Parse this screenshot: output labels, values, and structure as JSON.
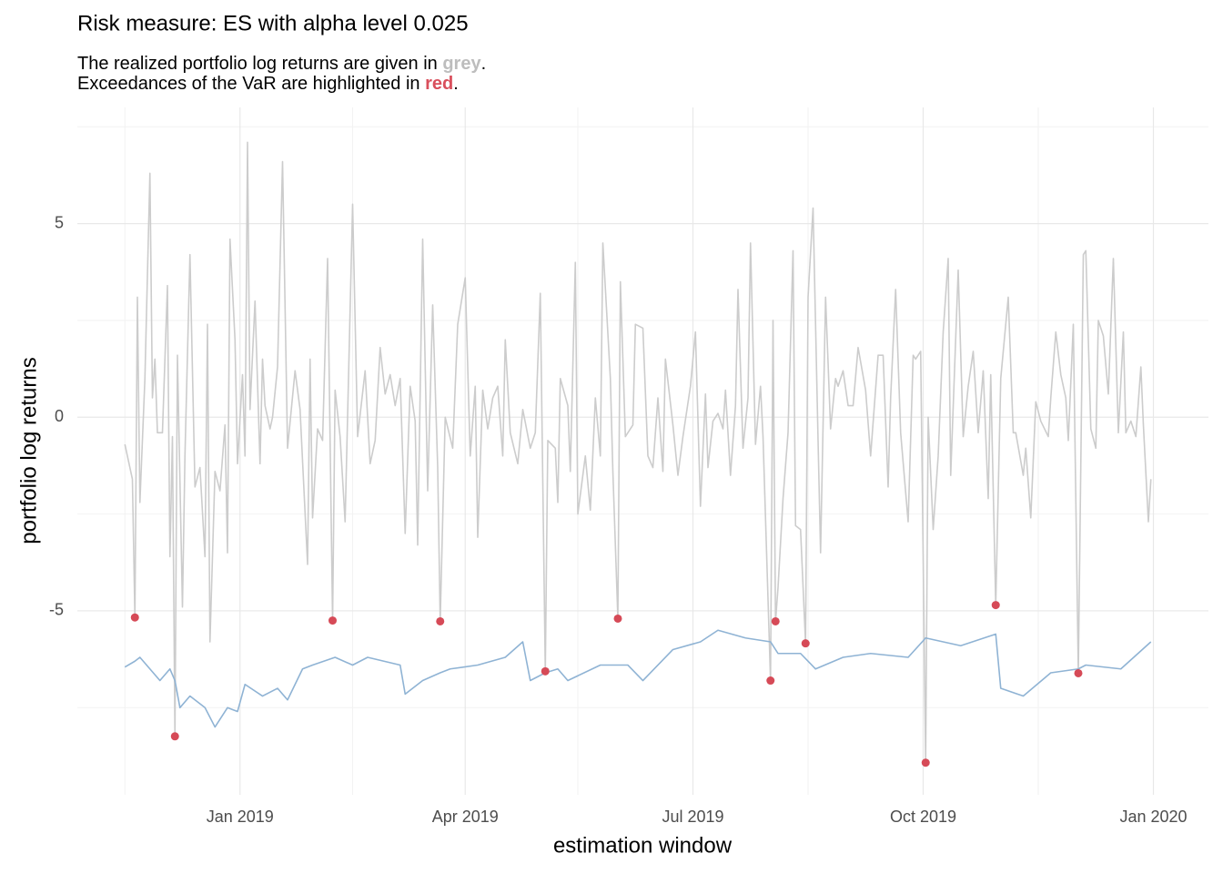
{
  "chart_data": {
    "type": "line",
    "title": "Risk measure: ES with alpha level 0.025",
    "subtitle": [
      [
        "The realized portfolio log returns are given in ",
        "grey",
        "."
      ],
      [
        "Exceedances of the VaR are highlighted in ",
        "red",
        "."
      ]
    ],
    "subtitle_highlight_colors": [
      "#bdbdbd",
      "#d94f5c"
    ],
    "x_label": "estimation window",
    "y_label": "portfolio log returns",
    "xlim": [
      "2018-10-28",
      "2020-01-23"
    ],
    "xticks": [
      {
        "value": "2019-01-01",
        "label": "Jan 2019"
      },
      {
        "value": "2019-04-01",
        "label": "Apr 2019"
      },
      {
        "value": "2019-07-01",
        "label": "Jul 2019"
      },
      {
        "value": "2019-10-01",
        "label": "Oct 2019"
      },
      {
        "value": "2020-01-01",
        "label": "Jan 2020"
      }
    ],
    "x_minor_ticks": [
      "2018-11-16",
      "2019-02-15",
      "2019-05-16",
      "2019-08-16",
      "2019-11-16"
    ],
    "ylim": [
      -9.75,
      8.0
    ],
    "yticks": [
      -5,
      0,
      5
    ],
    "y_minor_ticks": [
      -7.5,
      -2.5,
      2.5,
      7.5
    ],
    "grid": true,
    "series": [
      {
        "kind": "line",
        "color": "#cccccc",
        "x": [
          "2018-11-16",
          "2018-11-19",
          "2018-11-20",
          "2018-11-21",
          "2018-11-22",
          "2018-11-24",
          "2018-11-26",
          "2018-11-27",
          "2018-11-28",
          "2018-11-29",
          "2018-12-01",
          "2018-12-03",
          "2018-12-04",
          "2018-12-05",
          "2018-12-06",
          "2018-12-07",
          "2018-12-09",
          "2018-12-10",
          "2018-12-12",
          "2018-12-14",
          "2018-12-16",
          "2018-12-18",
          "2018-12-19",
          "2018-12-20",
          "2018-12-22",
          "2018-12-24",
          "2018-12-26",
          "2018-12-27",
          "2018-12-28",
          "2018-12-30",
          "2018-12-31",
          "2019-01-02",
          "2019-01-03",
          "2019-01-04",
          "2019-01-05",
          "2019-01-07",
          "2019-01-09",
          "2019-01-10",
          "2019-01-11",
          "2019-01-13",
          "2019-01-14",
          "2019-01-16",
          "2019-01-18",
          "2019-01-20",
          "2019-01-23",
          "2019-01-25",
          "2019-01-28",
          "2019-01-29",
          "2019-01-30",
          "2019-02-01",
          "2019-02-03",
          "2019-02-05",
          "2019-02-07",
          "2019-02-08",
          "2019-02-10",
          "2019-02-12",
          "2019-02-15",
          "2019-02-17",
          "2019-02-20",
          "2019-02-22",
          "2019-02-24",
          "2019-02-26",
          "2019-02-28",
          "2019-03-02",
          "2019-03-04",
          "2019-03-06",
          "2019-03-08",
          "2019-03-10",
          "2019-03-12",
          "2019-03-13",
          "2019-03-15",
          "2019-03-17",
          "2019-03-19",
          "2019-03-21",
          "2019-03-22",
          "2019-03-24",
          "2019-03-27",
          "2019-03-29",
          "2019-04-01",
          "2019-04-03",
          "2019-04-05",
          "2019-04-06",
          "2019-04-08",
          "2019-04-10",
          "2019-04-12",
          "2019-04-14",
          "2019-04-16",
          "2019-04-17",
          "2019-04-19",
          "2019-04-22",
          "2019-04-24",
          "2019-04-27",
          "2019-04-29",
          "2019-05-01",
          "2019-05-03",
          "2019-05-04",
          "2019-05-07",
          "2019-05-08",
          "2019-05-09",
          "2019-05-12",
          "2019-05-13",
          "2019-05-15",
          "2019-05-16",
          "2019-05-19",
          "2019-05-21",
          "2019-05-23",
          "2019-05-25",
          "2019-05-26",
          "2019-05-29",
          "2019-05-30",
          "2019-06-01",
          "2019-06-02",
          "2019-06-04",
          "2019-06-07",
          "2019-06-08",
          "2019-06-11",
          "2019-06-13",
          "2019-06-15",
          "2019-06-17",
          "2019-06-19",
          "2019-06-20",
          "2019-06-23",
          "2019-06-25",
          "2019-06-27",
          "2019-06-30",
          "2019-07-02",
          "2019-07-04",
          "2019-07-06",
          "2019-07-07",
          "2019-07-09",
          "2019-07-11",
          "2019-07-13",
          "2019-07-14",
          "2019-07-16",
          "2019-07-18",
          "2019-07-19",
          "2019-07-21",
          "2019-07-23",
          "2019-07-24",
          "2019-07-26",
          "2019-07-28",
          "2019-07-29",
          "2019-08-01",
          "2019-08-02",
          "2019-08-03",
          "2019-08-04",
          "2019-08-06",
          "2019-08-08",
          "2019-08-10",
          "2019-08-11",
          "2019-08-13",
          "2019-08-15",
          "2019-08-16",
          "2019-08-18",
          "2019-08-20",
          "2019-08-21",
          "2019-08-23",
          "2019-08-25",
          "2019-08-27",
          "2019-08-28",
          "2019-08-30",
          "2019-09-01",
          "2019-09-03",
          "2019-09-05",
          "2019-09-08",
          "2019-09-10",
          "2019-09-13",
          "2019-09-15",
          "2019-09-17",
          "2019-09-18",
          "2019-09-20",
          "2019-09-22",
          "2019-09-25",
          "2019-09-27",
          "2019-09-28",
          "2019-09-30",
          "2019-10-02",
          "2019-10-03",
          "2019-10-05",
          "2019-10-07",
          "2019-10-09",
          "2019-10-11",
          "2019-10-12",
          "2019-10-15",
          "2019-10-17",
          "2019-10-19",
          "2019-10-21",
          "2019-10-23",
          "2019-10-25",
          "2019-10-27",
          "2019-10-28",
          "2019-10-30",
          "2019-11-01",
          "2019-11-04",
          "2019-11-06",
          "2019-11-07",
          "2019-11-10",
          "2019-11-11",
          "2019-11-13",
          "2019-11-15",
          "2019-11-17",
          "2019-11-20",
          "2019-11-21",
          "2019-11-23",
          "2019-11-25",
          "2019-11-27",
          "2019-11-28",
          "2019-11-30",
          "2019-12-02",
          "2019-12-04",
          "2019-12-05",
          "2019-12-07",
          "2019-12-09",
          "2019-12-10",
          "2019-12-12",
          "2019-12-14",
          "2019-12-16",
          "2019-12-18",
          "2019-12-20",
          "2019-12-21",
          "2019-12-23",
          "2019-12-25",
          "2019-12-27",
          "2019-12-28",
          "2019-12-30",
          "2019-12-31"
        ],
        "values": [
          -0.7,
          -1.6,
          -5.17,
          3.1,
          -2.2,
          1.0,
          6.3,
          0.5,
          1.5,
          -0.4,
          -0.4,
          3.4,
          -3.6,
          -0.5,
          -8.24,
          1.6,
          -4.9,
          -1.0,
          4.2,
          -1.8,
          -1.3,
          -3.6,
          2.4,
          -5.8,
          -1.4,
          -1.9,
          -0.2,
          -3.5,
          4.6,
          2.0,
          -1.2,
          1.1,
          -1.0,
          7.1,
          0.2,
          3.0,
          -1.2,
          1.5,
          0.3,
          -0.3,
          0.0,
          1.3,
          6.6,
          -0.8,
          1.2,
          0.2,
          -3.8,
          1.5,
          -2.6,
          -0.3,
          -0.6,
          4.1,
          -5.25,
          0.7,
          -0.5,
          -2.7,
          5.5,
          -0.5,
          1.2,
          -1.2,
          -0.6,
          1.8,
          0.6,
          1.1,
          0.3,
          1.0,
          -3.0,
          0.8,
          -0.1,
          -3.3,
          4.6,
          -1.9,
          2.9,
          -1.3,
          -5.27,
          0.0,
          -0.8,
          2.4,
          3.6,
          -1.0,
          0.8,
          -3.1,
          0.7,
          -0.3,
          0.5,
          0.8,
          -1.0,
          2.0,
          -0.4,
          -1.2,
          0.2,
          -0.8,
          -0.4,
          3.2,
          -6.56,
          -0.6,
          -0.8,
          -2.2,
          1.0,
          0.3,
          -1.4,
          4.0,
          -2.5,
          -1.0,
          -2.4,
          0.5,
          -1.0,
          4.5,
          1.0,
          -1.4,
          -5.2,
          3.5,
          -0.5,
          -0.2,
          2.4,
          2.3,
          -1.0,
          -1.3,
          0.5,
          -1.4,
          1.5,
          -0.2,
          -1.5,
          -0.5,
          0.8,
          2.2,
          -2.3,
          0.6,
          -1.3,
          -0.1,
          0.1,
          -0.3,
          0.7,
          -1.5,
          0.3,
          3.3,
          -0.8,
          0.5,
          4.5,
          -0.7,
          0.8,
          -0.5,
          -6.8,
          2.5,
          -5.27,
          -4.4,
          -2.1,
          -0.4,
          4.3,
          -2.8,
          -2.9,
          -5.84,
          3.1,
          5.4,
          -0.6,
          -3.5,
          3.1,
          -0.3,
          1.0,
          0.8,
          1.2,
          0.3,
          0.3,
          1.8,
          0.7,
          -1.0,
          1.6,
          1.6,
          -1.8,
          0.5,
          3.3,
          -0.4,
          -2.7,
          1.6,
          1.5,
          1.7,
          -8.92,
          0.0,
          -2.9,
          -1.0,
          2.2,
          4.1,
          -1.5,
          3.8,
          -0.5,
          0.8,
          1.7,
          -0.4,
          1.2,
          -2.1,
          1.1,
          -4.85,
          1.0,
          3.1,
          -0.4,
          -0.4,
          -1.5,
          -0.8,
          -2.6,
          0.4,
          -0.1,
          -0.5,
          0.5,
          2.2,
          1.1,
          0.5,
          -0.6,
          2.4,
          -6.61,
          4.2,
          4.3,
          -0.3,
          -0.8,
          2.5,
          2.1,
          0.6,
          4.1,
          -0.4,
          2.2,
          -0.4,
          -0.1,
          -0.5,
          1.3,
          -0.2,
          -2.7,
          -1.6
        ]
      },
      {
        "kind": "line",
        "color": "#8fb3d4",
        "x": [
          "2018-11-16",
          "2018-11-20",
          "2018-11-22",
          "2018-11-26",
          "2018-11-30",
          "2018-12-04",
          "2018-12-06",
          "2018-12-08",
          "2018-12-12",
          "2018-12-18",
          "2018-12-22",
          "2018-12-27",
          "2018-12-31",
          "2019-01-03",
          "2019-01-10",
          "2019-01-16",
          "2019-01-20",
          "2019-01-26",
          "2019-01-30",
          "2019-02-08",
          "2019-02-15",
          "2019-02-21",
          "2019-03-06",
          "2019-03-08",
          "2019-03-15",
          "2019-03-22",
          "2019-03-26",
          "2019-04-06",
          "2019-04-17",
          "2019-04-24",
          "2019-04-27",
          "2019-05-03",
          "2019-05-08",
          "2019-05-12",
          "2019-05-25",
          "2019-06-05",
          "2019-06-11",
          "2019-06-23",
          "2019-07-04",
          "2019-07-11",
          "2019-07-22",
          "2019-08-01",
          "2019-08-04",
          "2019-08-13",
          "2019-08-19",
          "2019-08-30",
          "2019-09-10",
          "2019-09-25",
          "2019-10-02",
          "2019-10-16",
          "2019-10-30",
          "2019-11-01",
          "2019-11-10",
          "2019-11-21",
          "2019-12-02",
          "2019-12-05",
          "2019-12-19",
          "2019-12-31"
        ],
        "values": [
          -6.45,
          -6.3,
          -6.2,
          -6.5,
          -6.8,
          -6.5,
          -6.8,
          -7.5,
          -7.2,
          -7.5,
          -8.0,
          -7.5,
          -7.6,
          -6.9,
          -7.2,
          -7.0,
          -7.3,
          -6.5,
          -6.4,
          -6.2,
          -6.4,
          -6.2,
          -6.4,
          -7.15,
          -6.8,
          -6.6,
          -6.5,
          -6.4,
          -6.2,
          -5.8,
          -6.8,
          -6.6,
          -6.5,
          -6.8,
          -6.4,
          -6.4,
          -6.8,
          -6.0,
          -5.8,
          -5.5,
          -5.7,
          -5.8,
          -6.1,
          -6.1,
          -6.5,
          -6.2,
          -6.1,
          -6.2,
          -5.7,
          -5.9,
          -5.6,
          -7.0,
          -7.2,
          -6.6,
          -6.5,
          -6.4,
          -6.5,
          -5.8
        ]
      },
      {
        "kind": "points",
        "color": "#d64a57",
        "x": [
          "2018-11-20",
          "2018-12-06",
          "2019-02-07",
          "2019-03-22",
          "2019-05-03",
          "2019-06-01",
          "2019-08-01",
          "2019-08-03",
          "2019-08-15",
          "2019-10-02",
          "2019-10-30",
          "2019-12-02"
        ],
        "values": [
          -5.17,
          -8.24,
          -5.25,
          -5.27,
          -6.56,
          -5.2,
          -6.8,
          -5.27,
          -5.84,
          -8.92,
          -4.85,
          -6.61
        ]
      }
    ]
  }
}
